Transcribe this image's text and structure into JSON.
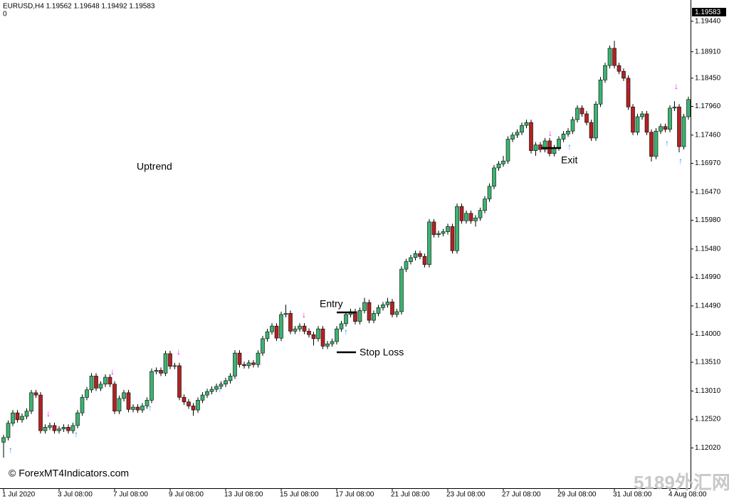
{
  "chart_data": {
    "type": "candlestick",
    "header": "EURUSD,H4  1.19562 1.19648 1.19492 1.19583",
    "subheader": "0",
    "price_label": "1.19583",
    "annotations": {
      "trend": "Uptrend",
      "entry": "Entry",
      "stop_loss": "Stop Loss",
      "exit": "Exit"
    },
    "copyright": "© ForexMT4Indicators.com",
    "watermark": "5189外汇网",
    "bull_color": "#3cb371",
    "bear_color": "#b22222",
    "ylim": [
      1.1132,
      1.1981
    ],
    "yticks": [
      {
        "value": 1.1944,
        "label": "1.19440"
      },
      {
        "value": 1.1891,
        "label": "1.18910"
      },
      {
        "value": 1.1845,
        "label": "1.18450"
      },
      {
        "value": 1.1796,
        "label": "1.17960"
      },
      {
        "value": 1.1746,
        "label": "1.17460"
      },
      {
        "value": 1.1697,
        "label": "1.16970"
      },
      {
        "value": 1.1647,
        "label": "1.16470"
      },
      {
        "value": 1.1598,
        "label": "1.15980"
      },
      {
        "value": 1.1548,
        "label": "1.15480"
      },
      {
        "value": 1.1499,
        "label": "1.14990"
      },
      {
        "value": 1.1449,
        "label": "1.14490"
      },
      {
        "value": 1.14,
        "label": "1.14000"
      },
      {
        "value": 1.1351,
        "label": "1.13510"
      },
      {
        "value": 1.1301,
        "label": "1.13010"
      },
      {
        "value": 1.1252,
        "label": "1.12520"
      },
      {
        "value": 1.1202,
        "label": "1.12020"
      }
    ],
    "categories": [
      "1 Jul 2020",
      null,
      null,
      null,
      null,
      null,
      null,
      null,
      null,
      null,
      null,
      null,
      "3 Jul 08:00",
      null,
      null,
      null,
      null,
      null,
      null,
      null,
      null,
      null,
      null,
      null,
      "7 Jul 08:00",
      null,
      null,
      null,
      null,
      null,
      null,
      null,
      null,
      null,
      null,
      null,
      "9 Jul 08:00",
      null,
      null,
      null,
      null,
      null,
      null,
      null,
      null,
      null,
      null,
      null,
      "13 Jul 08:00",
      null,
      null,
      null,
      null,
      null,
      null,
      null,
      null,
      null,
      null,
      null,
      "15 Jul 08:00",
      null,
      null,
      null,
      null,
      null,
      null,
      null,
      null,
      null,
      null,
      null,
      "17 Jul 08:00",
      null,
      null,
      null,
      null,
      null,
      null,
      null,
      null,
      null,
      null,
      null,
      "21 Jul 08:00",
      null,
      null,
      null,
      null,
      null,
      null,
      null,
      null,
      null,
      null,
      null,
      "23 Jul 08:00",
      null,
      null,
      null,
      null,
      null,
      null,
      null,
      null,
      null,
      null,
      null,
      "27 Jul 08:00",
      null,
      null,
      null,
      null,
      null,
      null,
      null,
      null,
      null,
      null,
      null,
      "29 Jul 08:00",
      null,
      null,
      null,
      null,
      null,
      null,
      null,
      null,
      null,
      null,
      null,
      "31 Jul 08:00",
      null,
      null,
      null,
      null,
      null,
      null,
      null,
      null,
      null,
      null,
      null,
      "4 Aug 08:00",
      null,
      null,
      null,
      null
    ],
    "open": [
      1.1212,
      1.122,
      1.1245,
      1.1263,
      1.1251,
      1.1257,
      1.1266,
      1.1298,
      1.1294,
      1.1232,
      1.1238,
      1.1241,
      1.1232,
      1.1235,
      1.1238,
      1.1232,
      1.1241,
      1.1263,
      1.129,
      1.1303,
      1.1327,
      1.1306,
      1.1313,
      1.1325,
      1.1313,
      1.1266,
      1.1288,
      1.1298,
      1.1269,
      1.1273,
      1.1268,
      1.1275,
      1.1285,
      1.1335,
      1.1337,
      1.1332,
      1.1366,
      1.1344,
      1.1345,
      1.129,
      1.1282,
      1.1275,
      1.1268,
      1.1285,
      1.1294,
      1.13,
      1.1304,
      1.1309,
      1.1313,
      1.1319,
      1.1327,
      1.1367,
      1.1347,
      1.1345,
      1.135,
      1.1347,
      1.1367,
      1.1392,
      1.1404,
      1.1414,
      1.1393,
      1.1434,
      1.1436,
      1.1405,
      1.1409,
      1.1414,
      1.1405,
      1.1399,
      1.1392,
      1.1409,
      1.1379,
      1.1383,
      1.1387,
      1.1409,
      1.1418,
      1.1434,
      1.1439,
      1.1422,
      1.1441,
      1.1455,
      1.1424,
      1.1436,
      1.1446,
      1.1451,
      1.1456,
      1.1434,
      1.1439,
      1.1513,
      1.1526,
      1.1533,
      1.154,
      1.1535,
      1.1521,
      1.1595,
      1.1573,
      1.1575,
      1.1578,
      1.1587,
      1.1545,
      1.1622,
      1.1597,
      1.161,
      1.1597,
      1.1602,
      1.1615,
      1.1635,
      1.1657,
      1.1689,
      1.1696,
      1.1701,
      1.1739,
      1.1746,
      1.1751,
      1.1763,
      1.1768,
      1.1719,
      1.1729,
      1.1721,
      1.1736,
      1.1714,
      1.1724,
      1.1739,
      1.1748,
      1.1753,
      1.1773,
      1.1793,
      1.1783,
      1.1768,
      1.1741,
      1.18,
      1.1842,
      1.1867,
      1.1897,
      1.1867,
      1.1857,
      1.1845,
      1.1795,
      1.1751,
      1.1778,
      1.1783,
      1.1751,
      1.1709,
      1.1753,
      1.1761,
      1.1756,
      1.1793,
      1.1795,
      1.1726,
      1.1778
    ],
    "high": [
      1.1225,
      1.125,
      1.1268,
      1.1268,
      1.1262,
      1.1271,
      1.1303,
      1.1303,
      1.1299,
      1.1243,
      1.1246,
      1.1246,
      1.124,
      1.1243,
      1.1243,
      1.1246,
      1.1268,
      1.1295,
      1.1308,
      1.1332,
      1.1332,
      1.1318,
      1.133,
      1.133,
      1.1318,
      1.1293,
      1.1303,
      1.1303,
      1.1278,
      1.1278,
      1.128,
      1.129,
      1.134,
      1.1342,
      1.1342,
      1.1371,
      1.1371,
      1.135,
      1.135,
      1.1295,
      1.1287,
      1.128,
      1.129,
      1.1299,
      1.1305,
      1.1309,
      1.1314,
      1.1318,
      1.1324,
      1.1332,
      1.1372,
      1.1372,
      1.1352,
      1.1355,
      1.1355,
      1.1372,
      1.1397,
      1.1409,
      1.1419,
      1.1419,
      1.1439,
      1.1451,
      1.1441,
      1.1414,
      1.1419,
      1.1419,
      1.141,
      1.1404,
      1.1414,
      1.1414,
      1.1388,
      1.1392,
      1.1414,
      1.1423,
      1.1439,
      1.1444,
      1.1444,
      1.1446,
      1.1463,
      1.146,
      1.1441,
      1.1451,
      1.1456,
      1.1463,
      1.1461,
      1.1444,
      1.1518,
      1.1531,
      1.1538,
      1.1545,
      1.1545,
      1.154,
      1.16,
      1.16,
      1.158,
      1.1583,
      1.1592,
      1.1592,
      1.1627,
      1.1627,
      1.1615,
      1.1615,
      1.1607,
      1.162,
      1.164,
      1.1662,
      1.1694,
      1.1701,
      1.171,
      1.1744,
      1.1751,
      1.1756,
      1.1768,
      1.1773,
      1.1773,
      1.1734,
      1.1734,
      1.1741,
      1.1741,
      1.1729,
      1.1744,
      1.1753,
      1.1758,
      1.1778,
      1.1798,
      1.1798,
      1.1788,
      1.1773,
      1.1805,
      1.1847,
      1.1872,
      1.1902,
      1.191,
      1.1872,
      1.1862,
      1.185,
      1.18,
      1.1783,
      1.1788,
      1.1788,
      1.1756,
      1.1758,
      1.1766,
      1.1766,
      1.1798,
      1.1805,
      1.18,
      1.1783,
      1.1813
    ],
    "low": [
      1.1185,
      1.1215,
      1.124,
      1.1246,
      1.1246,
      1.1252,
      1.1261,
      1.1289,
      1.1227,
      1.1227,
      1.1233,
      1.1227,
      1.1227,
      1.123,
      1.1227,
      1.1227,
      1.1236,
      1.1258,
      1.1285,
      1.1298,
      1.1301,
      1.1301,
      1.1308,
      1.1308,
      1.1261,
      1.1261,
      1.1283,
      1.1264,
      1.1264,
      1.1263,
      1.1263,
      1.127,
      1.128,
      1.133,
      1.1327,
      1.1327,
      1.1339,
      1.1339,
      1.1285,
      1.1277,
      1.127,
      1.1258,
      1.1263,
      1.128,
      1.1289,
      1.1295,
      1.1299,
      1.1304,
      1.1308,
      1.1314,
      1.1322,
      1.1342,
      1.134,
      1.134,
      1.1342,
      1.1342,
      1.1362,
      1.1387,
      1.1399,
      1.1388,
      1.1388,
      1.1429,
      1.14,
      1.14,
      1.1404,
      1.14,
      1.1394,
      1.138,
      1.1387,
      1.1374,
      1.1374,
      1.1378,
      1.1382,
      1.1404,
      1.1413,
      1.1429,
      1.1417,
      1.1417,
      1.1436,
      1.1419,
      1.1419,
      1.1431,
      1.1441,
      1.1446,
      1.1429,
      1.1429,
      1.1434,
      1.1508,
      1.1521,
      1.1528,
      1.153,
      1.1516,
      1.1516,
      1.1568,
      1.1568,
      1.157,
      1.1573,
      1.154,
      1.154,
      1.1592,
      1.1592,
      1.1592,
      1.1587,
      1.1597,
      1.161,
      1.163,
      1.1652,
      1.1684,
      1.1691,
      1.1696,
      1.1734,
      1.1741,
      1.1746,
      1.1758,
      1.1714,
      1.171,
      1.1716,
      1.1716,
      1.1709,
      1.1709,
      1.1719,
      1.1734,
      1.1743,
      1.1748,
      1.1768,
      1.1778,
      1.1763,
      1.1736,
      1.1736,
      1.1795,
      1.1837,
      1.1862,
      1.1862,
      1.1852,
      1.184,
      1.179,
      1.1746,
      1.1746,
      1.1773,
      1.1746,
      1.17,
      1.1704,
      1.1748,
      1.1751,
      1.1751,
      1.1788,
      1.1716,
      1.1721,
      1.1773
    ],
    "close": [
      1.122,
      1.1245,
      1.1263,
      1.1251,
      1.1257,
      1.1266,
      1.1298,
      1.1294,
      1.1232,
      1.1238,
      1.1241,
      1.1232,
      1.1235,
      1.1238,
      1.1232,
      1.1241,
      1.1263,
      1.129,
      1.1303,
      1.1327,
      1.1306,
      1.1313,
      1.1325,
      1.1313,
      1.1266,
      1.1288,
      1.1298,
      1.1269,
      1.1273,
      1.1268,
      1.1275,
      1.1285,
      1.1335,
      1.1337,
      1.1332,
      1.1366,
      1.1344,
      1.1345,
      1.129,
      1.1282,
      1.1275,
      1.1268,
      1.1285,
      1.1294,
      1.13,
      1.1304,
      1.1309,
      1.1313,
      1.1319,
      1.1327,
      1.1367,
      1.1347,
      1.1345,
      1.135,
      1.1347,
      1.1367,
      1.1392,
      1.1404,
      1.1414,
      1.1393,
      1.1434,
      1.1436,
      1.1405,
      1.1409,
      1.1414,
      1.1405,
      1.1399,
      1.1392,
      1.1409,
      1.1379,
      1.1383,
      1.1387,
      1.1409,
      1.1418,
      1.1434,
      1.1439,
      1.1422,
      1.1441,
      1.1455,
      1.1424,
      1.1436,
      1.1446,
      1.1451,
      1.1456,
      1.1434,
      1.1439,
      1.1513,
      1.1526,
      1.1533,
      1.154,
      1.1535,
      1.1521,
      1.1595,
      1.1573,
      1.1575,
      1.1578,
      1.1587,
      1.1545,
      1.1622,
      1.1597,
      1.161,
      1.1597,
      1.1602,
      1.1615,
      1.1635,
      1.1657,
      1.1689,
      1.1696,
      1.1701,
      1.1739,
      1.1746,
      1.1751,
      1.1763,
      1.1768,
      1.1719,
      1.1729,
      1.1721,
      1.1736,
      1.1714,
      1.1724,
      1.1739,
      1.1748,
      1.1753,
      1.1773,
      1.1793,
      1.1783,
      1.1768,
      1.1741,
      1.18,
      1.1842,
      1.1867,
      1.1897,
      1.1867,
      1.1857,
      1.1845,
      1.1795,
      1.1751,
      1.1778,
      1.1783,
      1.1751,
      1.1709,
      1.1753,
      1.1761,
      1.1756,
      1.1793,
      1.1795,
      1.1726,
      1.1778,
      1.1808
    ]
  }
}
